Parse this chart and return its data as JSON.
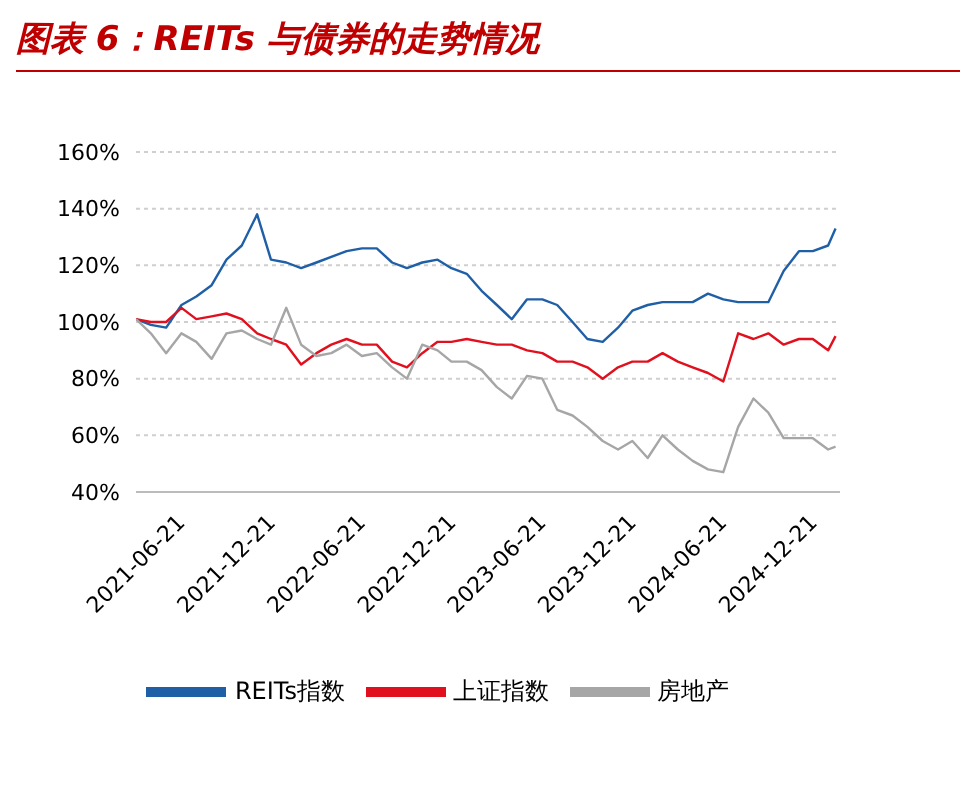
{
  "chart_data": {
    "type": "line",
    "title": "图表 6：REITs 与债券的走势情况",
    "x": [
      "2021-06-21",
      "2021-07-21",
      "2021-08-21",
      "2021-09-21",
      "2021-10-21",
      "2021-11-21",
      "2021-12-21",
      "2022-01-21",
      "2022-02-21",
      "2022-03-21",
      "2022-04-21",
      "2022-05-21",
      "2022-06-21",
      "2022-07-21",
      "2022-08-21",
      "2022-09-21",
      "2022-10-21",
      "2022-11-21",
      "2022-12-21",
      "2023-01-21",
      "2023-02-21",
      "2023-03-21",
      "2023-04-21",
      "2023-05-21",
      "2023-06-21",
      "2023-07-21",
      "2023-08-21",
      "2023-09-21",
      "2023-10-21",
      "2023-11-21",
      "2023-12-21",
      "2024-01-21",
      "2024-02-21",
      "2024-03-21",
      "2024-04-21",
      "2024-05-21",
      "2024-06-21",
      "2024-07-21",
      "2024-08-21",
      "2024-09-21",
      "2024-10-21",
      "2024-11-21",
      "2024-12-21",
      "2025-01-21",
      "2025-02-21",
      "2025-03-21",
      "2025-04-21",
      "2025-05-06"
    ],
    "series": [
      {
        "name": "REITs指数",
        "color": "#1f5fa6",
        "values": [
          101,
          99,
          98,
          106,
          109,
          113,
          122,
          127,
          138,
          122,
          121,
          119,
          121,
          123,
          125,
          126,
          126,
          121,
          119,
          121,
          122,
          119,
          117,
          111,
          106,
          101,
          108,
          108,
          106,
          100,
          94,
          93,
          98,
          104,
          106,
          107,
          107,
          107,
          110,
          108,
          107,
          107,
          107,
          118,
          125,
          125,
          127,
          133
        ]
      },
      {
        "name": "上证指数",
        "color": "#e0101e",
        "values": [
          101,
          100,
          100,
          105,
          101,
          102,
          103,
          101,
          96,
          94,
          92,
          85,
          89,
          92,
          94,
          92,
          92,
          86,
          84,
          89,
          93,
          93,
          94,
          93,
          92,
          92,
          90,
          89,
          86,
          86,
          84,
          80,
          84,
          86,
          86,
          89,
          86,
          84,
          82,
          79,
          96,
          94,
          96,
          92,
          94,
          94,
          90,
          95
        ]
      },
      {
        "name": "房地产",
        "color": "#a6a6a6",
        "values": [
          101,
          96,
          89,
          96,
          93,
          87,
          96,
          97,
          94,
          92,
          105,
          92,
          88,
          89,
          92,
          88,
          89,
          84,
          80,
          92,
          90,
          86,
          86,
          83,
          77,
          73,
          81,
          80,
          69,
          67,
          63,
          58,
          55,
          58,
          52,
          60,
          55,
          51,
          48,
          47,
          63,
          73,
          68,
          59,
          59,
          59,
          55,
          56
        ]
      }
    ],
    "xlim": [
      "2021-06-21",
      "2025-05-15"
    ],
    "xticks": [
      "2021-06-21",
      "2021-12-21",
      "2022-06-21",
      "2022-12-21",
      "2023-06-21",
      "2023-12-21",
      "2024-06-21",
      "2024-12-21"
    ],
    "ylim": [
      40,
      160
    ],
    "yticks": [
      {
        "value": 40,
        "label": "40%"
      },
      {
        "value": 60,
        "label": "60%"
      },
      {
        "value": 80,
        "label": "80%"
      },
      {
        "value": 100,
        "label": "100%"
      },
      {
        "value": 120,
        "label": "120%"
      },
      {
        "value": 140,
        "label": "140%"
      },
      {
        "value": 160,
        "label": "160%"
      }
    ],
    "grid": "y",
    "legend": "bottom",
    "marker": "none",
    "line_style": "solid"
  }
}
